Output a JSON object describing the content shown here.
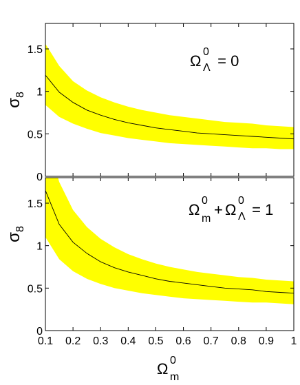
{
  "chart_data": [
    {
      "type": "area",
      "panel": "top",
      "annotation": {
        "base": "Ω",
        "sup": "0",
        "sub": "Λ",
        "tail": " = 0"
      },
      "ylabel": {
        "base": "σ",
        "sub": "8"
      },
      "xlim": [
        0.1,
        1.0
      ],
      "ylim": [
        0,
        1.8
      ],
      "yticks": [
        0,
        0.5,
        1,
        1.5
      ],
      "ytick_labels": [
        "0",
        "0.5",
        "1",
        "1.5"
      ],
      "x": [
        0.1,
        0.15,
        0.2,
        0.25,
        0.3,
        0.35,
        0.4,
        0.45,
        0.5,
        0.55,
        0.6,
        0.65,
        0.7,
        0.75,
        0.8,
        0.85,
        0.9,
        0.95,
        1.0
      ],
      "series": [
        {
          "role": "band_upper",
          "color": "#ffff00",
          "values": [
            1.56,
            1.3,
            1.12,
            1.01,
            0.93,
            0.87,
            0.82,
            0.78,
            0.75,
            0.72,
            0.7,
            0.68,
            0.66,
            0.64,
            0.63,
            0.62,
            0.6,
            0.59,
            0.58
          ]
        },
        {
          "role": "central",
          "color": "#000000",
          "values": [
            1.19,
            0.99,
            0.87,
            0.78,
            0.72,
            0.67,
            0.63,
            0.6,
            0.57,
            0.55,
            0.53,
            0.51,
            0.5,
            0.49,
            0.48,
            0.47,
            0.46,
            0.45,
            0.44
          ]
        },
        {
          "role": "band_lower",
          "color": "#ffff00",
          "values": [
            0.84,
            0.7,
            0.62,
            0.56,
            0.51,
            0.48,
            0.45,
            0.43,
            0.41,
            0.39,
            0.38,
            0.37,
            0.36,
            0.35,
            0.34,
            0.33,
            0.33,
            0.32,
            0.32
          ]
        }
      ]
    },
    {
      "type": "area",
      "panel": "bottom",
      "annotation": {
        "parts": [
          {
            "base": "Ω",
            "sup": "0",
            "sub": "m"
          },
          {
            "text": "+ "
          },
          {
            "base": "Ω",
            "sup": "0",
            "sub": "Λ"
          }
        ],
        "tail": " = 1"
      },
      "ylabel": {
        "base": "σ",
        "sub": "8"
      },
      "xlabel": {
        "base": "Ω",
        "sup": "0",
        "sub": "m"
      },
      "xlim": [
        0.1,
        1.0
      ],
      "ylim": [
        0,
        1.8
      ],
      "yticks": [
        0,
        0.5,
        1,
        1.5
      ],
      "ytick_labels": [
        "0",
        "0.5",
        "1",
        "1.5"
      ],
      "xticks": [
        0.1,
        0.2,
        0.3,
        0.4,
        0.5,
        0.6,
        0.7,
        0.8,
        0.9,
        1.0
      ],
      "xtick_labels": [
        "0.1",
        "0.2",
        "0.3",
        "0.4",
        "0.5",
        "0.6",
        "0.7",
        "0.8",
        "0.9",
        "1"
      ],
      "x": [
        0.1,
        0.15,
        0.2,
        0.25,
        0.3,
        0.35,
        0.4,
        0.45,
        0.5,
        0.55,
        0.6,
        0.65,
        0.7,
        0.75,
        0.8,
        0.85,
        0.9,
        0.95,
        1.0
      ],
      "series": [
        {
          "role": "band_upper",
          "color": "#ffff00",
          "values": [
            2.3,
            1.75,
            1.42,
            1.22,
            1.08,
            0.98,
            0.9,
            0.84,
            0.79,
            0.75,
            0.72,
            0.69,
            0.67,
            0.65,
            0.63,
            0.62,
            0.6,
            0.59,
            0.58
          ]
        },
        {
          "role": "central",
          "color": "#000000",
          "values": [
            1.65,
            1.25,
            1.04,
            0.91,
            0.81,
            0.74,
            0.69,
            0.65,
            0.61,
            0.58,
            0.56,
            0.54,
            0.52,
            0.5,
            0.49,
            0.48,
            0.46,
            0.45,
            0.44
          ]
        },
        {
          "role": "band_lower",
          "color": "#ffff00",
          "values": [
            1.1,
            0.84,
            0.7,
            0.61,
            0.55,
            0.5,
            0.47,
            0.44,
            0.42,
            0.4,
            0.38,
            0.37,
            0.36,
            0.35,
            0.34,
            0.33,
            0.33,
            0.32,
            0.31
          ]
        }
      ]
    }
  ]
}
